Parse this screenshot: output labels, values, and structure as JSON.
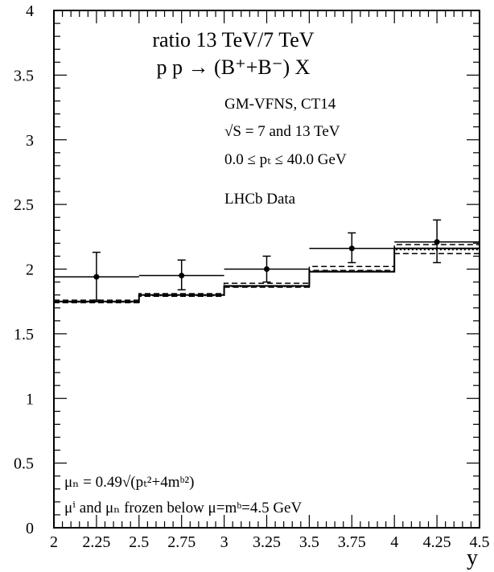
{
  "chart_data": {
    "type": "step-line",
    "title_lines": [
      "ratio 13 TeV/7 TeV",
      "p p → (B⁺+B⁻) X"
    ],
    "info_lines": [
      "GM-VFNS, CT14",
      "√S = 7 and 13 TeV",
      "0.0 ≤  pₜ ≤ 40.0 GeV",
      "LHCb Data"
    ],
    "note_lines": [
      "μₙ = 0.49√(pₜ²+4mᵇ²)",
      "μⁱ and μₙ frozen below μ=mᵇ=4.5 GeV"
    ],
    "xlabel": "y",
    "ylabel": "",
    "xlim": [
      2,
      4.5
    ],
    "ylim": [
      0,
      4
    ],
    "x_ticks": [
      "2",
      "2.25",
      "2.5",
      "2.75",
      "3",
      "3.25",
      "3.5",
      "3.75",
      "4",
      "4.25",
      "4.5"
    ],
    "y_ticks": [
      "0",
      "0.5",
      "1",
      "1.5",
      "2",
      "2.5",
      "3",
      "3.5",
      "4"
    ],
    "bin_edges": [
      2.0,
      2.5,
      3.0,
      3.5,
      4.0,
      4.5
    ],
    "series": [
      {
        "style": "solid",
        "values": [
          1.75,
          1.8,
          1.87,
          1.98,
          2.16
        ]
      },
      {
        "style": "dashed",
        "values": [
          1.76,
          1.81,
          1.89,
          2.02,
          2.19
        ]
      },
      {
        "style": "dotted",
        "values": [
          1.745,
          1.795,
          1.865,
          1.985,
          2.15
        ]
      },
      {
        "style": "dashed",
        "values": [
          1.74,
          1.79,
          1.86,
          1.99,
          2.12
        ]
      }
    ],
    "data_points": [
      {
        "x": 2.25,
        "y": 1.94,
        "ylow": 1.76,
        "yhigh": 2.13
      },
      {
        "x": 2.75,
        "y": 1.95,
        "ylow": 1.84,
        "yhigh": 2.07
      },
      {
        "x": 3.25,
        "y": 2.0,
        "ylow": 1.9,
        "yhigh": 2.1
      },
      {
        "x": 3.75,
        "y": 2.16,
        "ylow": 2.05,
        "yhigh": 2.28
      },
      {
        "x": 4.25,
        "y": 2.21,
        "ylow": 2.05,
        "yhigh": 2.38
      }
    ]
  }
}
